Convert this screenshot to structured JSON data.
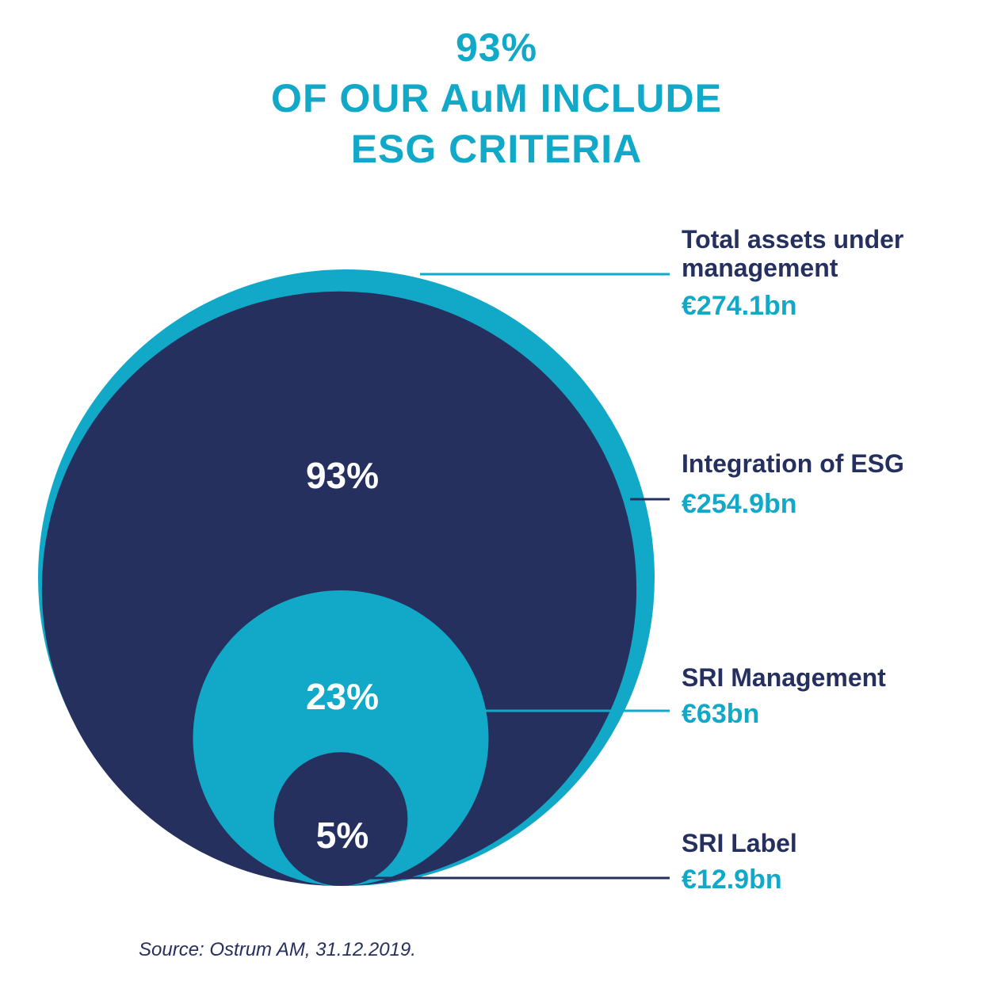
{
  "title": {
    "line1": "93%",
    "line2": "OF OUR AuM INCLUDE",
    "line3": "ESG CRITERIA"
  },
  "colors": {
    "cyan": "#12a8c8",
    "navy": "#25305f",
    "white": "#ffffff"
  },
  "chart_data": {
    "type": "nested-circle",
    "unit": "€bn",
    "series": [
      {
        "label_line1": "Total assets under",
        "label_line2": "management",
        "value_text": "€274.1bn",
        "value": 274.1,
        "percent_text": ""
      },
      {
        "label_line1": "Integration of ESG",
        "label_line2": "",
        "value_text": "€254.9bn",
        "value": 254.9,
        "percent_text": "93%"
      },
      {
        "label_line1": "SRI Management",
        "label_line2": "",
        "value_text": "€63bn",
        "value": 63,
        "percent_text": "23%"
      },
      {
        "label_line1": "SRI Label",
        "label_line2": "",
        "value_text": "€12.9bn",
        "value": 12.9,
        "percent_text": "5%"
      }
    ]
  },
  "source": "Source: Ostrum AM, 31.12.2019."
}
